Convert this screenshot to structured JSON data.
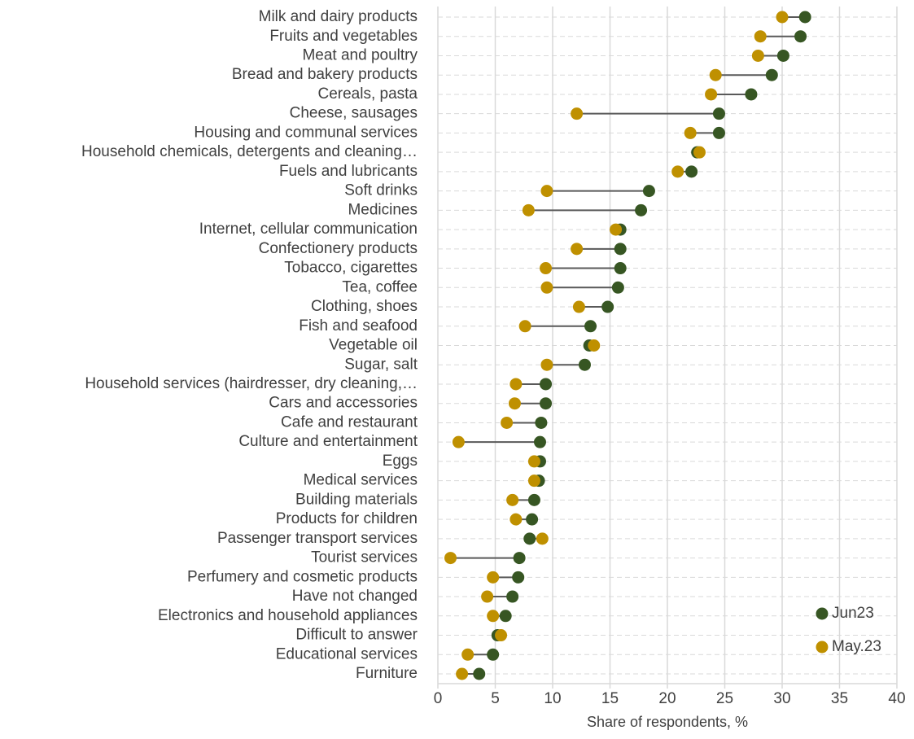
{
  "chart_data": {
    "type": "dumbbell",
    "x_label": "Share of respondents, %",
    "categories": [
      "Milk and dairy products",
      "Fruits and vegetables",
      "Meat and poultry",
      "Bread and bakery products",
      "Cereals, pasta",
      "Cheese, sausages",
      "Housing and communal services",
      "Household chemicals, detergents and cleaning…",
      "Fuels and lubricants",
      "Soft drinks",
      "Medicines",
      "Internet, cellular communication ",
      "Confectionery products",
      "Tobacco, cigarettes",
      "Tea, coffee",
      "Clothing, shoes",
      "Fish and seafood",
      "Vegetable oil",
      "Sugar, salt",
      "Household services (hairdresser, dry cleaning,…",
      "Cars and accessories",
      "Cafe and restaurant",
      "Culture and entertainment",
      "Eggs",
      "Medical services",
      "Building materials",
      "Products for children",
      "Passenger transport services",
      "Tourist services",
      "Perfumery and cosmetic products",
      "Have not changed",
      "Electronics and household appliances",
      "Difficult to answer",
      "Educational services",
      "Furniture"
    ],
    "series": [
      {
        "name": "Jun23",
        "color": "#375623",
        "values": [
          32.0,
          31.6,
          30.1,
          29.1,
          27.3,
          24.5,
          24.5,
          22.6,
          22.1,
          18.4,
          17.7,
          15.9,
          15.9,
          15.9,
          15.7,
          14.8,
          13.3,
          13.2,
          12.8,
          9.4,
          9.4,
          9.0,
          8.9,
          8.9,
          8.8,
          8.4,
          8.2,
          8.0,
          7.1,
          7.0,
          6.5,
          5.9,
          5.2,
          4.8,
          3.6
        ]
      },
      {
        "name": "May.23",
        "color": "#bf9000",
        "values": [
          30.0,
          28.1,
          27.9,
          24.2,
          23.8,
          12.1,
          22.0,
          22.8,
          20.9,
          9.5,
          7.9,
          15.5,
          12.1,
          9.4,
          9.5,
          12.3,
          7.6,
          13.6,
          9.5,
          6.8,
          6.7,
          6.0,
          1.8,
          8.4,
          8.4,
          6.5,
          6.8,
          9.1,
          1.1,
          4.8,
          4.3,
          4.8,
          5.5,
          2.6,
          2.1
        ]
      }
    ],
    "connector_color": "#595959",
    "xlim": [
      0,
      40
    ],
    "xticks": [
      0,
      5,
      10,
      15,
      20,
      25,
      30,
      35,
      40
    ],
    "grid": true,
    "legend": "lower right"
  }
}
